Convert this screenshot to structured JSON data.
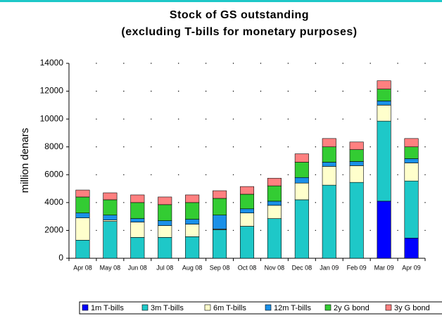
{
  "chart_data": {
    "type": "stacked_bar",
    "title": "Stock of GS outstanding",
    "subtitle": "(excluding T-bills for monetary purposes)",
    "ylabel": "million denars",
    "categories": [
      "Apr 08",
      "May 08",
      "Jun 08",
      "Jul 08",
      "Aug 08",
      "Sep 08",
      "Oct 08",
      "Nov 08",
      "Dec 08",
      "Jan 09",
      "Feb 09",
      "Mar 09",
      "Apr 09"
    ],
    "series": [
      {
        "name": "1m T-bills",
        "color": "#0000ff",
        "values": [
          0,
          0,
          0,
          0,
          0,
          0,
          0,
          0,
          0,
          0,
          0,
          4100,
          1450
        ]
      },
      {
        "name": "3m T-bills",
        "color": "#1ec8c8",
        "values": [
          1300,
          2650,
          1500,
          1500,
          1550,
          2050,
          2300,
          2850,
          4200,
          5250,
          5450,
          5750,
          4100
        ]
      },
      {
        "name": "6m T-bills",
        "color": "#ffffcc",
        "values": [
          1600,
          100,
          1100,
          850,
          900,
          50,
          950,
          950,
          1200,
          1350,
          1200,
          1150,
          1300
        ]
      },
      {
        "name": "12m T-bills",
        "color": "#1a90e8",
        "values": [
          350,
          350,
          250,
          350,
          350,
          1000,
          300,
          300,
          400,
          300,
          300,
          300,
          300
        ]
      },
      {
        "name": "2y G bond",
        "color": "#33cc33",
        "values": [
          1150,
          1100,
          1150,
          1150,
          1200,
          1200,
          1050,
          1100,
          1100,
          1100,
          850,
          850,
          850
        ]
      },
      {
        "name": "3y G bond",
        "color": "#ff8080",
        "values": [
          500,
          500,
          550,
          550,
          550,
          550,
          550,
          550,
          600,
          600,
          550,
          600,
          600
        ]
      }
    ],
    "ylim": [
      0,
      14000
    ],
    "yticks": [
      0,
      2000,
      4000,
      6000,
      8000,
      10000,
      12000,
      14000
    ],
    "grid": true,
    "legend": "bottom"
  }
}
